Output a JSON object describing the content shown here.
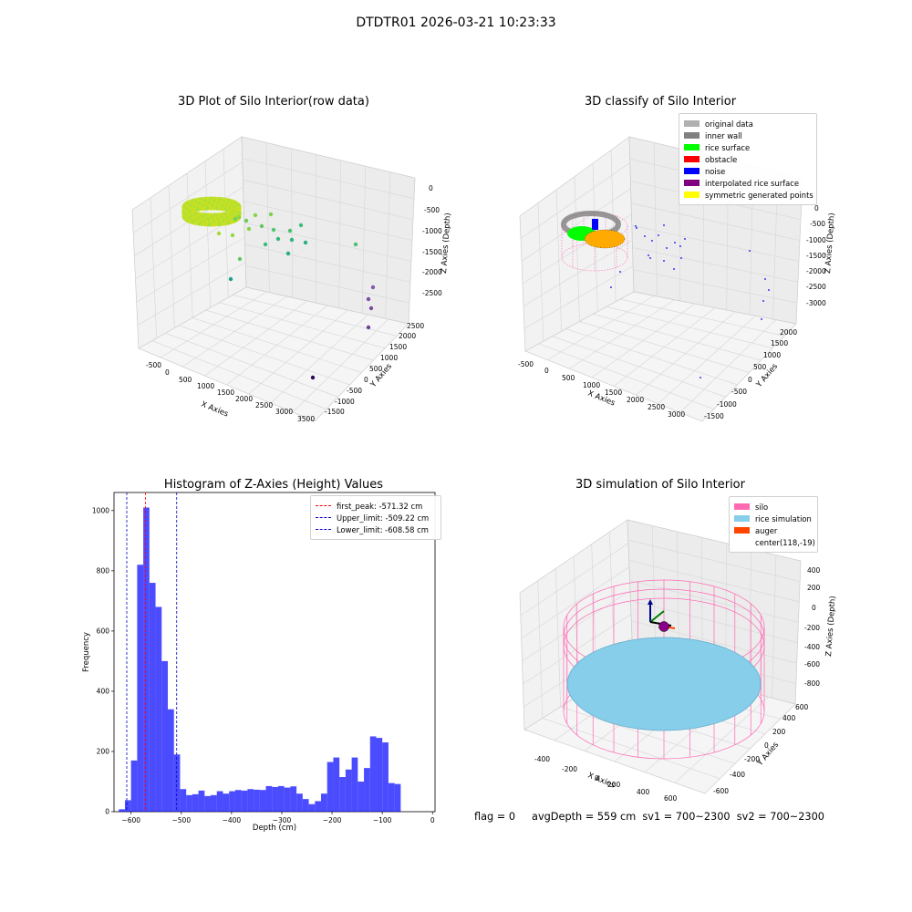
{
  "figure": {
    "suptitle": "DTDTR01 2026-03-21 10:23:33",
    "status_line": {
      "flag": "flag = 0",
      "avg_depth": "avgDepth = 559 cm",
      "sv1": "sv1 = 700~2300",
      "sv2": "sv2 = 700~2300"
    }
  },
  "chart_data": [
    {
      "type": "scatter",
      "title": "3D Plot of Silo Interior(row data)",
      "xlabel": "X Axies",
      "ylabel": "Y Axies",
      "zlabel": "Z Axies (Depth)",
      "x_ticks": [
        "-500",
        "0",
        "500",
        "1000",
        "1500",
        "2000",
        "2500",
        "3000",
        "3500"
      ],
      "y_ticks": [
        "-1500",
        "-1000",
        "-500",
        "0",
        "500",
        "1000",
        "1500",
        "2000",
        "2500"
      ],
      "z_ticks": [
        "0",
        "-500",
        "-1000",
        "-1500",
        "-2000",
        "-2500"
      ],
      "grid": true,
      "colormap": "viridis"
    },
    {
      "type": "scatter",
      "title": "3D classify of Silo Interior",
      "xlabel": "X Axies",
      "ylabel": "Y Axies",
      "zlabel": "Z Axies (Depth)",
      "x_ticks": [
        "-500",
        "0",
        "500",
        "1000",
        "1500",
        "2000",
        "2500",
        "3000"
      ],
      "y_ticks": [
        "-1500",
        "-1000",
        "-500",
        "0",
        "500",
        "1000",
        "1500",
        "2000"
      ],
      "z_ticks": [
        "0",
        "-500",
        "-1000",
        "-1500",
        "-2000",
        "-2500",
        "-3000"
      ],
      "grid": true,
      "legend_position": "top-right",
      "legend": [
        {
          "label": "original data",
          "color": "#b0b0b0"
        },
        {
          "label": "inner wall",
          "color": "#808080"
        },
        {
          "label": "rice surface",
          "color": "#00ff00"
        },
        {
          "label": "obstacle",
          "color": "#ff0000"
        },
        {
          "label": "noise",
          "color": "#0000ff"
        },
        {
          "label": "interpolated rice surface",
          "color": "#800080"
        },
        {
          "label": "symmetric generated points",
          "color": "#ffff00"
        }
      ]
    },
    {
      "type": "bar",
      "title": "Histogram of Z-Axies (Height) Values",
      "xlabel": "Depth (cm)",
      "ylabel": "Frequency",
      "xlim": [
        -634,
        5
      ],
      "ylim": [
        0,
        1060
      ],
      "x_ticks": [
        -600,
        -500,
        -400,
        -300,
        -200,
        -100,
        0
      ],
      "y_ticks": [
        0,
        200,
        400,
        600,
        800,
        1000
      ],
      "bar_color": "#0000ff",
      "bin_start": -624.5,
      "bin_width": 12.2,
      "values": [
        8,
        38,
        170,
        820,
        1010,
        760,
        680,
        500,
        340,
        190,
        75,
        55,
        58,
        70,
        52,
        55,
        68,
        60,
        68,
        72,
        70,
        75,
        73,
        72,
        85,
        82,
        85,
        80,
        84,
        60,
        42,
        25,
        35,
        60,
        165,
        180,
        115,
        140,
        180,
        100,
        145,
        250,
        245,
        230,
        95,
        92
      ],
      "vlines": [
        {
          "x": -571.32,
          "label": "first_peak: -571.32 cm",
          "color": "#ff0000"
        },
        {
          "x": -509.22,
          "label": "Upper_limit: -509.22 cm",
          "color": "#0000cc"
        },
        {
          "x": -608.58,
          "label": "Lower_limit: -608.58 cm",
          "color": "#0000cc"
        }
      ],
      "legend_position": "top-right",
      "grid": false
    },
    {
      "type": "scatter",
      "title": "3D simulation of Silo Interior",
      "xlabel": "X Axies",
      "ylabel": "Y Axies",
      "zlabel": "Z Axies (Depth)",
      "x_ticks": [
        "-400",
        "-200",
        "0",
        "200",
        "400",
        "600"
      ],
      "y_ticks": [
        "-600",
        "-400",
        "-200",
        "0",
        "200",
        "400",
        "600"
      ],
      "z_ticks": [
        "400",
        "200",
        "0",
        "-200",
        "-400",
        "-600",
        "-800"
      ],
      "grid": true,
      "legend_position": "top-right",
      "legend": [
        {
          "label": "silo",
          "color": "#ff69b4"
        },
        {
          "label": "rice simulation",
          "color": "#87ceeb"
        },
        {
          "label": "auger",
          "color": "#ff4500"
        },
        {
          "label": "center(118,-19)",
          "color": "#ffffff"
        }
      ]
    }
  ]
}
